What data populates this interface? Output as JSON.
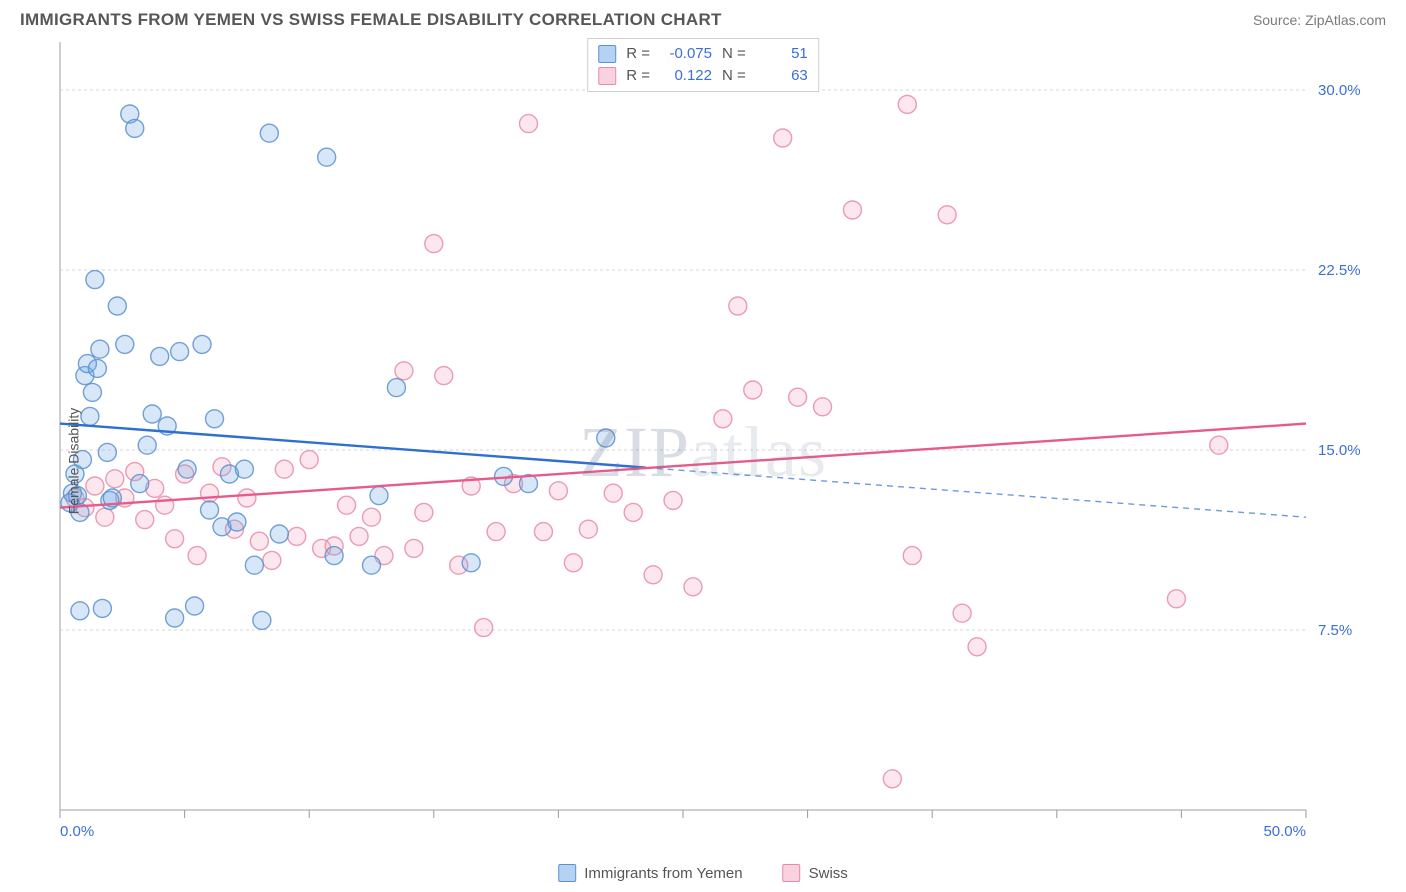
{
  "title": "IMMIGRANTS FROM YEMEN VS SWISS FEMALE DISABILITY CORRELATION CHART",
  "source": "Source: ZipAtlas.com",
  "watermark": "ZIPatlas",
  "y_axis_label": "Female Disability",
  "chart": {
    "type": "scatter",
    "xlim": [
      0,
      50
    ],
    "ylim": [
      0,
      32
    ],
    "x_tick_step": 5,
    "x_labels": [
      {
        "v": 0,
        "t": "0.0%"
      },
      {
        "v": 50,
        "t": "50.0%"
      }
    ],
    "y_ticks": [
      {
        "v": 7.5,
        "t": "7.5%"
      },
      {
        "v": 15.0,
        "t": "15.0%"
      },
      {
        "v": 22.5,
        "t": "22.5%"
      },
      {
        "v": 30.0,
        "t": "30.0%"
      }
    ],
    "background_color": "#ffffff",
    "grid_color": "#d5d5d5",
    "axis_color": "#bfbfbf",
    "marker_radius": 9,
    "marker_opacity": 0.55,
    "series": [
      {
        "id": "yemen",
        "label": "Immigrants from Yemen",
        "color": "#6ea6e6",
        "border": "#5b90cf",
        "R": "-0.075",
        "N": "51",
        "trend": {
          "x1": 0,
          "y1": 16.1,
          "x2": 50,
          "y2": 12.2,
          "solid_until_x": 23.5,
          "color": "#2f6fd0",
          "width": 2.4
        },
        "points": [
          [
            0.4,
            12.8
          ],
          [
            0.5,
            13.2
          ],
          [
            0.6,
            14.0
          ],
          [
            0.7,
            13.1
          ],
          [
            0.8,
            12.4
          ],
          [
            0.9,
            14.6
          ],
          [
            1.0,
            18.1
          ],
          [
            1.1,
            18.6
          ],
          [
            1.2,
            16.4
          ],
          [
            1.3,
            17.4
          ],
          [
            1.4,
            22.1
          ],
          [
            1.5,
            18.4
          ],
          [
            1.6,
            19.2
          ],
          [
            1.7,
            8.4
          ],
          [
            1.9,
            14.9
          ],
          [
            2.0,
            12.9
          ],
          [
            2.1,
            13.0
          ],
          [
            2.3,
            21.0
          ],
          [
            2.6,
            19.4
          ],
          [
            2.8,
            29.0
          ],
          [
            3.0,
            28.4
          ],
          [
            3.2,
            13.6
          ],
          [
            3.5,
            15.2
          ],
          [
            3.7,
            16.5
          ],
          [
            4.0,
            18.9
          ],
          [
            4.3,
            16.0
          ],
          [
            4.6,
            8.0
          ],
          [
            4.8,
            19.1
          ],
          [
            5.1,
            14.2
          ],
          [
            5.4,
            8.5
          ],
          [
            5.7,
            19.4
          ],
          [
            6.0,
            12.5
          ],
          [
            6.2,
            16.3
          ],
          [
            6.5,
            11.8
          ],
          [
            6.8,
            14.0
          ],
          [
            7.1,
            12.0
          ],
          [
            7.4,
            14.2
          ],
          [
            7.8,
            10.2
          ],
          [
            8.1,
            7.9
          ],
          [
            8.4,
            28.2
          ],
          [
            8.8,
            11.5
          ],
          [
            10.7,
            27.2
          ],
          [
            11.0,
            10.6
          ],
          [
            12.5,
            10.2
          ],
          [
            12.8,
            13.1
          ],
          [
            13.5,
            17.6
          ],
          [
            16.5,
            10.3
          ],
          [
            17.8,
            13.9
          ],
          [
            18.8,
            13.6
          ],
          [
            21.9,
            15.5
          ],
          [
            0.8,
            8.3
          ]
        ]
      },
      {
        "id": "swiss",
        "label": "Swiss",
        "color": "#f2a6bd",
        "border": "#e88ba6",
        "R": "0.122",
        "N": "63",
        "trend": {
          "x1": 0,
          "y1": 12.6,
          "x2": 50,
          "y2": 16.1,
          "solid_until_x": 50,
          "color": "#e75a8b",
          "width": 2.4
        },
        "points": [
          [
            0.6,
            13.0
          ],
          [
            1.0,
            12.6
          ],
          [
            1.4,
            13.5
          ],
          [
            1.8,
            12.2
          ],
          [
            2.2,
            13.8
          ],
          [
            2.6,
            13.0
          ],
          [
            3.0,
            14.1
          ],
          [
            3.4,
            12.1
          ],
          [
            3.8,
            13.4
          ],
          [
            4.2,
            12.7
          ],
          [
            4.6,
            11.3
          ],
          [
            5.0,
            14.0
          ],
          [
            5.5,
            10.6
          ],
          [
            6.0,
            13.2
          ],
          [
            6.5,
            14.3
          ],
          [
            7.0,
            11.7
          ],
          [
            7.5,
            13.0
          ],
          [
            8.0,
            11.2
          ],
          [
            8.5,
            10.4
          ],
          [
            9.0,
            14.2
          ],
          [
            9.5,
            11.4
          ],
          [
            10.0,
            14.6
          ],
          [
            10.5,
            10.9
          ],
          [
            11.0,
            11.0
          ],
          [
            11.5,
            12.7
          ],
          [
            12.0,
            11.4
          ],
          [
            12.5,
            12.2
          ],
          [
            13.0,
            10.6
          ],
          [
            13.8,
            18.3
          ],
          [
            14.2,
            10.9
          ],
          [
            14.6,
            12.4
          ],
          [
            15.0,
            23.6
          ],
          [
            15.4,
            18.1
          ],
          [
            16.0,
            10.2
          ],
          [
            16.5,
            13.5
          ],
          [
            17.0,
            7.6
          ],
          [
            17.5,
            11.6
          ],
          [
            18.2,
            13.6
          ],
          [
            18.8,
            28.6
          ],
          [
            19.4,
            11.6
          ],
          [
            20.0,
            13.3
          ],
          [
            20.6,
            10.3
          ],
          [
            21.2,
            11.7
          ],
          [
            22.2,
            13.2
          ],
          [
            23.0,
            12.4
          ],
          [
            23.8,
            9.8
          ],
          [
            24.6,
            12.9
          ],
          [
            25.4,
            9.3
          ],
          [
            26.6,
            16.3
          ],
          [
            27.2,
            21.0
          ],
          [
            27.8,
            17.5
          ],
          [
            29.0,
            28.0
          ],
          [
            29.6,
            17.2
          ],
          [
            30.6,
            16.8
          ],
          [
            31.8,
            25.0
          ],
          [
            33.4,
            1.3
          ],
          [
            34.0,
            29.4
          ],
          [
            34.2,
            10.6
          ],
          [
            35.6,
            24.8
          ],
          [
            36.2,
            8.2
          ],
          [
            36.8,
            6.8
          ],
          [
            44.8,
            8.8
          ],
          [
            46.5,
            15.2
          ]
        ]
      }
    ]
  },
  "legend_labels": {
    "R": "R =",
    "N": "N ="
  }
}
